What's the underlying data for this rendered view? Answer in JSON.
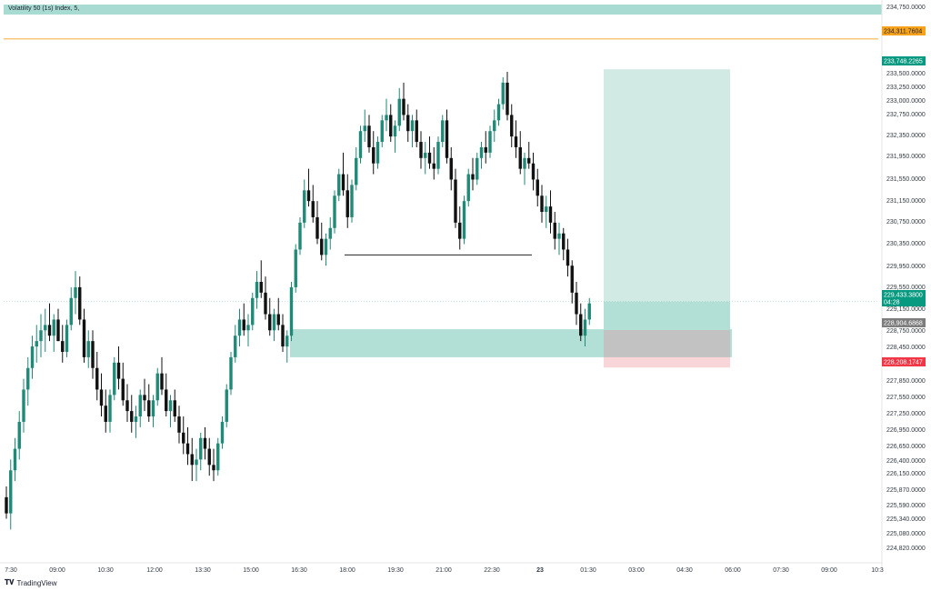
{
  "header": {
    "title": "Volatility 50 (1s) Index, 5,"
  },
  "footer": {
    "brand": "TradingView"
  },
  "colors": {
    "bull": "#1f8a78",
    "bear": "#111111",
    "target_zone": "#cfeae3",
    "demand_zone": "#b2dfd6",
    "stop_zone": "#f7d5d8",
    "entry_zone": "#c2c2c2",
    "orange_line": "#f4b54a",
    "price_tag": "#089981",
    "entry_tag": "#7d7d7d",
    "stop_tag": "#f23645",
    "orange_tag": "#f7a21b"
  },
  "chart_data": {
    "type": "candlestick",
    "title": "Volatility 50 (1s) Index, 5,",
    "ylim": [
      224700,
      234900
    ],
    "price_ticks": [
      "234,750.0000",
      "233,500.0000",
      "233,250.0000",
      "233,000.0000",
      "232,750.0000",
      "232,350.0000",
      "231,950.0000",
      "231,550.0000",
      "231,150.0000",
      "230,750.0000",
      "230,350.0000",
      "229,950.0000",
      "229,550.0000",
      "229,150.0000",
      "228,750.0000",
      "228,450.0000",
      "227,850.0000",
      "227,550.0000",
      "227,250.0000",
      "226,950.0000",
      "226,650.0000",
      "226,400.0000",
      "226,150.0000",
      "225,870.0000",
      "225,590.0000",
      "225,340.0000",
      "225,080.0000",
      "224,820.0000"
    ],
    "time_ticks": [
      "7:30",
      "09:00",
      "10:30",
      "12:00",
      "13:30",
      "15:00",
      "16:30",
      "18:00",
      "19:30",
      "21:00",
      "22:30",
      "23",
      "01:30",
      "03:00",
      "04:30",
      "06:00",
      "07:30",
      "09:00",
      "10:3"
    ],
    "price_tags": {
      "orange_level": "234,311.7604",
      "target": "233,748.2265",
      "current_price": "229,433.3800",
      "countdown": "04:28",
      "entry": "228,904.6868",
      "stop": "228,208.1747"
    },
    "levels": {
      "orange_level": 234311.76,
      "target": 233748.23,
      "current": 229433.38,
      "entry": 228904.69,
      "stop": 228208.17,
      "support_line": 230300
    },
    "zones": {
      "demand": {
        "from": 228400,
        "to": 228920
      },
      "position_target": {
        "from": 228904.69,
        "to": 233748.23
      },
      "position_stop": {
        "from": 228208.17,
        "to": 228904.69
      }
    },
    "candles": [
      [
        225800,
        226000,
        225400,
        225500
      ],
      [
        225500,
        226500,
        225200,
        226300
      ],
      [
        226300,
        226900,
        226100,
        226700
      ],
      [
        226700,
        227400,
        226500,
        227200
      ],
      [
        227200,
        228000,
        227000,
        227800
      ],
      [
        227800,
        228400,
        227500,
        228200
      ],
      [
        228200,
        228800,
        228000,
        228600
      ],
      [
        228600,
        229000,
        228300,
        228700
      ],
      [
        228700,
        229200,
        228400,
        228900
      ],
      [
        228900,
        229300,
        228500,
        229000
      ],
      [
        229000,
        229400,
        228700,
        228800
      ],
      [
        228800,
        229200,
        228500,
        229100
      ],
      [
        229100,
        229300,
        228700,
        228700
      ],
      [
        228700,
        229000,
        228300,
        228500
      ],
      [
        228500,
        229100,
        228400,
        229000
      ],
      [
        229000,
        229700,
        228900,
        229500
      ],
      [
        229500,
        230000,
        229200,
        229700
      ],
      [
        229700,
        229900,
        229000,
        229100
      ],
      [
        229100,
        229300,
        228300,
        228400
      ],
      [
        228400,
        228900,
        228200,
        228700
      ],
      [
        228700,
        228900,
        228000,
        228200
      ],
      [
        228200,
        228500,
        227600,
        227800
      ],
      [
        227800,
        228100,
        227300,
        227500
      ],
      [
        227500,
        227800,
        227000,
        227200
      ],
      [
        227200,
        227800,
        227000,
        227700
      ],
      [
        227700,
        228400,
        227600,
        228300
      ],
      [
        228300,
        228600,
        227800,
        228000
      ],
      [
        228000,
        228300,
        227500,
        227600
      ],
      [
        227600,
        227900,
        227200,
        227400
      ],
      [
        227400,
        227700,
        227000,
        227200
      ],
      [
        227200,
        227500,
        226900,
        227300
      ],
      [
        227300,
        227800,
        227100,
        227700
      ],
      [
        227700,
        228000,
        227400,
        227600
      ],
      [
        227600,
        227900,
        227200,
        227300
      ],
      [
        227300,
        227700,
        227100,
        227600
      ],
      [
        227600,
        228200,
        227500,
        228100
      ],
      [
        228100,
        228400,
        227700,
        227800
      ],
      [
        227800,
        228100,
        227300,
        227400
      ],
      [
        227400,
        227700,
        227100,
        227600
      ],
      [
        227600,
        227800,
        227200,
        227300
      ],
      [
        227300,
        227500,
        226800,
        227000
      ],
      [
        227000,
        227300,
        226600,
        226800
      ],
      [
        226800,
        227100,
        226400,
        226600
      ],
      [
        226600,
        226900,
        226100,
        226400
      ],
      [
        226400,
        226700,
        226100,
        226500
      ],
      [
        226500,
        227000,
        226300,
        226900
      ],
      [
        226900,
        227100,
        226500,
        226700
      ],
      [
        226700,
        226900,
        226200,
        226400
      ],
      [
        226400,
        226700,
        226100,
        226300
      ],
      [
        226300,
        226900,
        226200,
        226800
      ],
      [
        226800,
        227300,
        226700,
        227200
      ],
      [
        227200,
        227900,
        227100,
        227800
      ],
      [
        227800,
        228500,
        227700,
        228400
      ],
      [
        228400,
        229000,
        228300,
        228800
      ],
      [
        228800,
        229300,
        228600,
        229100
      ],
      [
        229100,
        229400,
        228800,
        228900
      ],
      [
        228900,
        229200,
        228600,
        229000
      ],
      [
        229000,
        229600,
        228900,
        229500
      ],
      [
        229500,
        230000,
        229300,
        229800
      ],
      [
        229800,
        230200,
        229500,
        229600
      ],
      [
        229600,
        229900,
        229100,
        229200
      ],
      [
        229200,
        229500,
        228800,
        228900
      ],
      [
        228900,
        229300,
        228700,
        229200
      ],
      [
        229200,
        229500,
        228900,
        229000
      ],
      [
        229000,
        229200,
        228500,
        228600
      ],
      [
        228600,
        228900,
        228300,
        228800
      ],
      [
        228800,
        229800,
        228700,
        229700
      ],
      [
        229700,
        230500,
        229600,
        230400
      ],
      [
        230400,
        231000,
        230300,
        230900
      ],
      [
        230900,
        231700,
        230800,
        231500
      ],
      [
        231500,
        231900,
        231200,
        231300
      ],
      [
        231300,
        231600,
        230900,
        231000
      ],
      [
        231000,
        231300,
        230500,
        230600
      ],
      [
        230600,
        230900,
        230200,
        230300
      ],
      [
        230300,
        230700,
        230100,
        230600
      ],
      [
        230600,
        231000,
        230400,
        230800
      ],
      [
        230800,
        231500,
        230700,
        231400
      ],
      [
        231400,
        231900,
        231300,
        231800
      ],
      [
        231800,
        232200,
        231400,
        231500
      ],
      [
        231500,
        231800,
        230800,
        231000
      ],
      [
        231000,
        231700,
        230900,
        231600
      ],
      [
        231600,
        232300,
        231500,
        232100
      ],
      [
        232100,
        232700,
        232000,
        232600
      ],
      [
        232600,
        233000,
        232400,
        232700
      ],
      [
        232700,
        232900,
        232200,
        232300
      ],
      [
        232300,
        232600,
        231800,
        232000
      ],
      [
        232000,
        232500,
        231900,
        232400
      ],
      [
        232400,
        232900,
        232300,
        232800
      ],
      [
        232800,
        233200,
        232600,
        232900
      ],
      [
        232900,
        233100,
        232400,
        232500
      ],
      [
        232500,
        232800,
        232200,
        232700
      ],
      [
        232700,
        233400,
        232600,
        233200
      ],
      [
        233200,
        233500,
        232800,
        232900
      ],
      [
        232900,
        233100,
        232400,
        232600
      ],
      [
        232600,
        232900,
        232300,
        232800
      ],
      [
        232800,
        233000,
        232300,
        232400
      ],
      [
        232400,
        232600,
        231900,
        232100
      ],
      [
        232100,
        232400,
        231800,
        232200
      ],
      [
        232200,
        232500,
        231900,
        232000
      ],
      [
        232000,
        232300,
        231700,
        231900
      ],
      [
        231900,
        232500,
        231800,
        232400
      ],
      [
        232400,
        232900,
        232300,
        232800
      ],
      [
        232800,
        233000,
        232000,
        232100
      ],
      [
        232100,
        232300,
        231500,
        231700
      ],
      [
        231700,
        231900,
        230800,
        230900
      ],
      [
        230900,
        231200,
        230400,
        230600
      ],
      [
        230600,
        231400,
        230500,
        231300
      ],
      [
        231300,
        231900,
        231200,
        231800
      ],
      [
        231800,
        232100,
        231500,
        231700
      ],
      [
        231700,
        232200,
        231600,
        232100
      ],
      [
        232100,
        232400,
        231900,
        232300
      ],
      [
        232300,
        232600,
        232000,
        232200
      ],
      [
        232200,
        232700,
        232100,
        232600
      ],
      [
        232600,
        233000,
        232400,
        232800
      ],
      [
        232800,
        233200,
        232700,
        233100
      ],
      [
        233100,
        233600,
        233000,
        233500
      ],
      [
        233500,
        233700,
        232800,
        232900
      ],
      [
        232900,
        233100,
        232300,
        232500
      ],
      [
        232500,
        232800,
        232100,
        232300
      ],
      [
        232300,
        232600,
        231800,
        231900
      ],
      [
        231900,
        232200,
        231600,
        232100
      ],
      [
        232100,
        232400,
        231900,
        232000
      ],
      [
        232000,
        232200,
        231500,
        231700
      ],
      [
        231700,
        231900,
        231200,
        231400
      ],
      [
        231400,
        231600,
        230900,
        231100
      ],
      [
        231100,
        231400,
        230800,
        231200
      ],
      [
        231200,
        231500,
        230700,
        230900
      ],
      [
        230900,
        231100,
        230400,
        230600
      ],
      [
        230600,
        230900,
        230300,
        230700
      ],
      [
        230700,
        230800,
        230200,
        230400
      ],
      [
        230400,
        230600,
        229900,
        230100
      ],
      [
        230100,
        230200,
        229400,
        229600
      ],
      [
        229600,
        229800,
        229000,
        229200
      ],
      [
        229200,
        229400,
        228700,
        228800
      ],
      [
        228800,
        229300,
        228600,
        229100
      ],
      [
        229100,
        229500,
        229000,
        229400
      ]
    ]
  }
}
